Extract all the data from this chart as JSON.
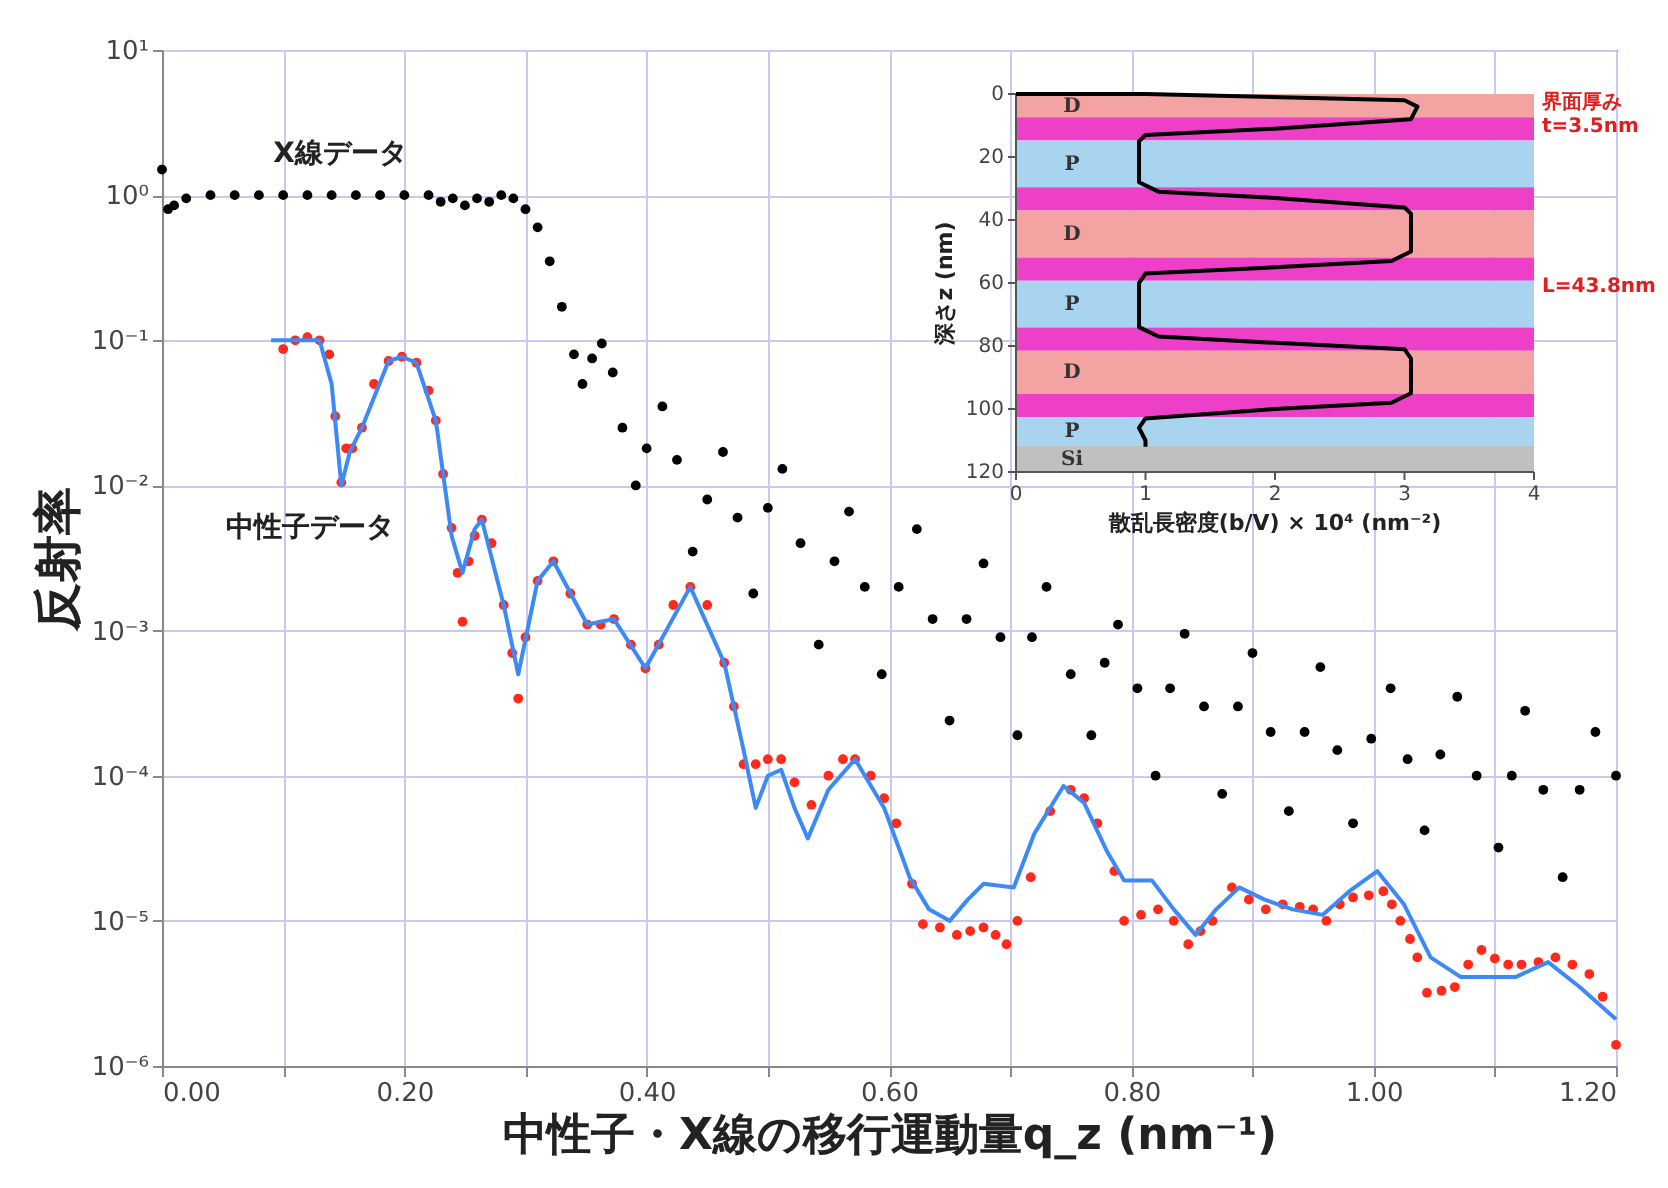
{
  "chart_data": [
    {
      "type": "scatter",
      "xlabel": "中性子・X線の移行運動量q_z (nm⁻¹)",
      "ylabel": "反射率",
      "log": "y",
      "grid": true,
      "marker": "circle",
      "xlim": [
        0,
        1.2
      ],
      "ylim": [
        1e-06,
        10
      ],
      "xticks": [
        {
          "value": 0,
          "label": "0.00"
        },
        {
          "value": 0.1,
          "label": null
        },
        {
          "value": 0.2,
          "label": "0.20"
        },
        {
          "value": 0.3,
          "label": null
        },
        {
          "value": 0.4,
          "label": "0.40"
        },
        {
          "value": 0.5,
          "label": null
        },
        {
          "value": 0.6,
          "label": "0.60"
        },
        {
          "value": 0.7,
          "label": null
        },
        {
          "value": 0.8,
          "label": "0.80"
        },
        {
          "value": 0.9,
          "label": null
        },
        {
          "value": 1.0,
          "label": "1.00"
        },
        {
          "value": 1.1,
          "label": null
        },
        {
          "value": 1.2,
          "label": "1.20"
        }
      ],
      "yticks": [
        {
          "value": 1e-06,
          "label": "10⁻⁶"
        },
        {
          "value": 1e-05,
          "label": "10⁻⁵"
        },
        {
          "value": 0.0001,
          "label": "10⁻⁴"
        },
        {
          "value": 0.001,
          "label": "10⁻³"
        },
        {
          "value": 0.01,
          "label": "10⁻²"
        },
        {
          "value": 0.1,
          "label": "10⁻¹"
        },
        {
          "value": 1,
          "label": "10⁰"
        },
        {
          "value": 10,
          "label": "10¹"
        }
      ],
      "series": [
        {
          "color": "#000000",
          "x": [
            0,
            0.005,
            0.01,
            0.02,
            0.04,
            0.06,
            0.08,
            0.1,
            0.12,
            0.14,
            0.16,
            0.18,
            0.2,
            0.22,
            0.23,
            0.24,
            0.25,
            0.26,
            0.27,
            0.28,
            0.29,
            0.3,
            0.31,
            0.32,
            0.33,
            0.34,
            0.347,
            0.355,
            0.363,
            0.372,
            0.38,
            0.391,
            0.4,
            0.413,
            0.425,
            0.438,
            0.45,
            0.463,
            0.475,
            0.488,
            0.5,
            0.512,
            0.527,
            0.542,
            0.555,
            0.567,
            0.58,
            0.594,
            0.608,
            0.623,
            0.636,
            0.65,
            0.664,
            0.678,
            0.692,
            0.706,
            0.718,
            0.73,
            0.75,
            0.767,
            0.778,
            0.789,
            0.805,
            0.82,
            0.832,
            0.844,
            0.86,
            0.875,
            0.888,
            0.9,
            0.915,
            0.93,
            0.943,
            0.956,
            0.97,
            0.983,
            0.998,
            1.014,
            1.028,
            1.042,
            1.055,
            1.069,
            1.085,
            1.103,
            1.114,
            1.125,
            1.14,
            1.156,
            1.17,
            1.183,
            1.2
          ],
          "values": [
            1.5,
            0.8,
            0.85,
            0.95,
            1.0,
            1.0,
            1.0,
            1.0,
            1.0,
            1.0,
            1.0,
            1.0,
            1.0,
            1.0,
            0.9,
            0.95,
            0.85,
            0.95,
            0.9,
            1.0,
            0.95,
            0.8,
            0.6,
            0.35,
            0.17,
            0.08,
            0.05,
            0.075,
            0.095,
            0.06,
            0.025,
            0.01,
            0.018,
            0.035,
            0.015,
            0.0035,
            0.008,
            0.017,
            0.006,
            0.0018,
            0.007,
            0.013,
            0.004,
            0.0008,
            0.003,
            0.0066,
            0.002,
            0.0005,
            0.002,
            0.005,
            0.0012,
            0.00024,
            0.0012,
            0.0029,
            0.0009,
            0.00019,
            0.0009,
            0.002,
            0.0005,
            0.00019,
            0.0006,
            0.0011,
            0.0004,
            0.0001,
            0.0004,
            0.00095,
            0.0003,
            7.5e-05,
            0.0003,
            0.0007,
            0.0002,
            5.7e-05,
            0.0002,
            0.00056,
            0.00015,
            4.7e-05,
            0.00018,
            0.0004,
            0.00013,
            4.2e-05,
            0.00014,
            0.00035,
            0.0001,
            3.2e-05,
            0.0001,
            0.00028,
            8e-05,
            2e-05,
            8e-05,
            0.0002,
            0.0001
          ]
        },
        {
          "color": "#ff2a1a",
          "x": [
            0.1,
            0.11,
            0.12,
            0.13,
            0.138,
            0.143,
            0.148,
            0.152,
            0.157,
            0.165,
            0.175,
            0.187,
            0.198,
            0.21,
            0.22,
            0.226,
            0.232,
            0.239,
            0.244,
            0.248,
            0.253,
            0.258,
            0.264,
            0.272,
            0.282,
            0.289,
            0.294,
            0.3,
            0.31,
            0.323,
            0.337,
            0.351,
            0.362,
            0.373,
            0.387,
            0.399,
            0.41,
            0.422,
            0.436,
            0.45,
            0.464,
            0.472,
            0.48,
            0.49,
            0.5,
            0.511,
            0.522,
            0.536,
            0.55,
            0.562,
            0.572,
            0.585,
            0.596,
            0.606,
            0.619,
            0.628,
            0.642,
            0.656,
            0.667,
            0.678,
            0.688,
            0.697,
            0.706,
            0.717,
            0.733,
            0.75,
            0.761,
            0.772,
            0.786,
            0.794,
            0.808,
            0.822,
            0.835,
            0.847,
            0.857,
            0.867,
            0.883,
            0.897,
            0.911,
            0.925,
            0.939,
            0.95,
            0.961,
            0.972,
            0.983,
            0.996,
            1.008,
            1.015,
            1.022,
            1.03,
            1.036,
            1.044,
            1.056,
            1.067,
            1.078,
            1.089,
            1.1,
            1.111,
            1.122,
            1.136,
            1.15,
            1.164,
            1.178,
            1.189,
            1.2
          ],
          "values": [
            0.087,
            0.1,
            0.105,
            0.1,
            0.08,
            0.03,
            0.0105,
            0.018,
            0.018,
            0.025,
            0.05,
            0.072,
            0.077,
            0.07,
            0.045,
            0.028,
            0.012,
            0.0051,
            0.0025,
            0.00115,
            0.003,
            0.0045,
            0.0058,
            0.004,
            0.0015,
            0.0007,
            0.00034,
            0.0009,
            0.0022,
            0.003,
            0.0018,
            0.0011,
            0.0011,
            0.0012,
            0.0008,
            0.00055,
            0.0008,
            0.0015,
            0.002,
            0.0015,
            0.0006,
            0.0003,
            0.00012,
            0.00012,
            0.00013,
            0.00013,
            9e-05,
            6.3e-05,
            0.0001,
            0.00013,
            0.00013,
            0.0001,
            7e-05,
            4.7e-05,
            1.8e-05,
            9.5e-06,
            9e-06,
            8e-06,
            8.5e-06,
            9e-06,
            8e-06,
            6.9e-06,
            1e-05,
            2e-05,
            5.7e-05,
            8e-05,
            7e-05,
            4.7e-05,
            2.2e-05,
            1e-05,
            1.1e-05,
            1.2e-05,
            1e-05,
            6.9e-06,
            8.5e-06,
            1e-05,
            1.7e-05,
            1.4e-05,
            1.2e-05,
            1.3e-05,
            1.25e-05,
            1.2e-05,
            1e-05,
            1.3e-05,
            1.45e-05,
            1.5e-05,
            1.6e-05,
            1.3e-05,
            1e-05,
            7.5e-06,
            5.6e-06,
            3.2e-06,
            3.3e-06,
            3.5e-06,
            5e-06,
            6.3e-06,
            5.5e-06,
            5e-06,
            5e-06,
            5.2e-06,
            5.6e-06,
            5e-06,
            4.3e-06,
            3e-06,
            1.4e-06
          ]
        },
        {
          "type": "line",
          "marker": "none",
          "color": "#3d8af7",
          "x": [
            0.09,
            0.11,
            0.13,
            0.14,
            0.148,
            0.155,
            0.165,
            0.187,
            0.198,
            0.21,
            0.226,
            0.239,
            0.248,
            0.258,
            0.264,
            0.282,
            0.294,
            0.31,
            0.323,
            0.351,
            0.373,
            0.399,
            0.436,
            0.464,
            0.48,
            0.49,
            0.5,
            0.511,
            0.522,
            0.533,
            0.55,
            0.572,
            0.596,
            0.617,
            0.633,
            0.65,
            0.665,
            0.678,
            0.703,
            0.72,
            0.744,
            0.761,
            0.78,
            0.794,
            0.817,
            0.835,
            0.853,
            0.87,
            0.889,
            0.91,
            0.933,
            0.958,
            0.98,
            1.003,
            1.025,
            1.047,
            1.072,
            1.095,
            1.117,
            1.144,
            1.17,
            1.2
          ],
          "values": [
            0.1,
            0.1,
            0.1,
            0.05,
            0.01,
            0.017,
            0.025,
            0.072,
            0.077,
            0.07,
            0.028,
            0.0045,
            0.0025,
            0.005,
            0.0058,
            0.0015,
            0.0005,
            0.0022,
            0.003,
            0.0011,
            0.0012,
            0.00055,
            0.002,
            0.0006,
            0.00015,
            6e-05,
            0.0001,
            0.00011,
            6e-05,
            3.7e-05,
            8e-05,
            0.00013,
            6e-05,
            2e-05,
            1.2e-05,
            1e-05,
            1.4e-05,
            1.8e-05,
            1.7e-05,
            4e-05,
            8.5e-05,
            6.5e-05,
            3e-05,
            1.9e-05,
            1.9e-05,
            1.2e-05,
            8e-06,
            1.2e-05,
            1.7e-05,
            1.4e-05,
            1.2e-05,
            1.1e-05,
            1.6e-05,
            2.2e-05,
            1.3e-05,
            5.6e-06,
            4.1e-06,
            4.1e-06,
            4.1e-06,
            5.2e-06,
            3.5e-06,
            2.1e-06
          ]
        }
      ],
      "annotations": [
        "X線データ",
        "中性子データ"
      ]
    },
    {
      "type": "line",
      "xlabel": "散乱長密度(b/V) × 10⁴ (nm⁻²)",
      "ylabel": "深さz (nm)",
      "xlim": [
        0,
        4
      ],
      "ylim": [
        120,
        0
      ],
      "xticks": [
        0,
        1,
        2,
        3,
        4
      ],
      "yticks": [
        0,
        20,
        40,
        60,
        80,
        100,
        120
      ],
      "bands": [
        {
          "axis": "y",
          "from": 0,
          "to": 7.4,
          "label": "D",
          "color": "#f4a3a3"
        },
        {
          "axis": "y",
          "from": 7.4,
          "to": 14.8,
          "color": "#ee3fc8"
        },
        {
          "axis": "y",
          "from": 14.8,
          "to": 29.6,
          "label": "P",
          "color": "#a8d4f0"
        },
        {
          "axis": "y",
          "from": 29.6,
          "to": 37,
          "color": "#ee3fc8"
        },
        {
          "axis": "y",
          "from": 37,
          "to": 51.9,
          "label": "D",
          "color": "#f4a3a3"
        },
        {
          "axis": "y",
          "from": 51.9,
          "to": 59.3,
          "color": "#ee3fc8"
        },
        {
          "axis": "y",
          "from": 59.3,
          "to": 74.1,
          "label": "P",
          "color": "#a8d4f0"
        },
        {
          "axis": "y",
          "from": 74.1,
          "to": 81.5,
          "color": "#ee3fc8"
        },
        {
          "axis": "y",
          "from": 81.5,
          "to": 95.2,
          "label": "D",
          "color": "#f4a3a3"
        },
        {
          "axis": "y",
          "from": 95.2,
          "to": 102.6,
          "color": "#ee3fc8"
        },
        {
          "axis": "y",
          "from": 102.6,
          "to": 111.5,
          "label": "P",
          "color": "#a8d4f0"
        },
        {
          "axis": "y",
          "from": 111.5,
          "to": 120,
          "label": "Si",
          "color": "#c0c0c0"
        }
      ],
      "series": [
        {
          "color": "#000000",
          "x": [
            0,
            1.0,
            3.0,
            3.1,
            3.05,
            2.0,
            1.0,
            0.95,
            0.95,
            1.1,
            2.0,
            3.0,
            3.05,
            3.05,
            2.9,
            2.0,
            1.0,
            0.95,
            0.95,
            1.1,
            2.0,
            3.0,
            3.05,
            3.05,
            2.9,
            2.0,
            1.0,
            0.95,
            1.0,
            1.0
          ],
          "values": [
            0,
            0,
            2,
            4,
            8,
            11,
            13,
            15,
            28,
            31,
            33,
            36,
            38,
            50,
            53,
            55,
            57,
            60,
            74,
            77,
            79,
            81,
            84,
            95,
            98,
            100,
            103,
            106,
            110,
            112
          ]
        }
      ],
      "annotations": [
        "界面厚み",
        "t=3.5nm",
        "L=43.8nm"
      ]
    }
  ]
}
